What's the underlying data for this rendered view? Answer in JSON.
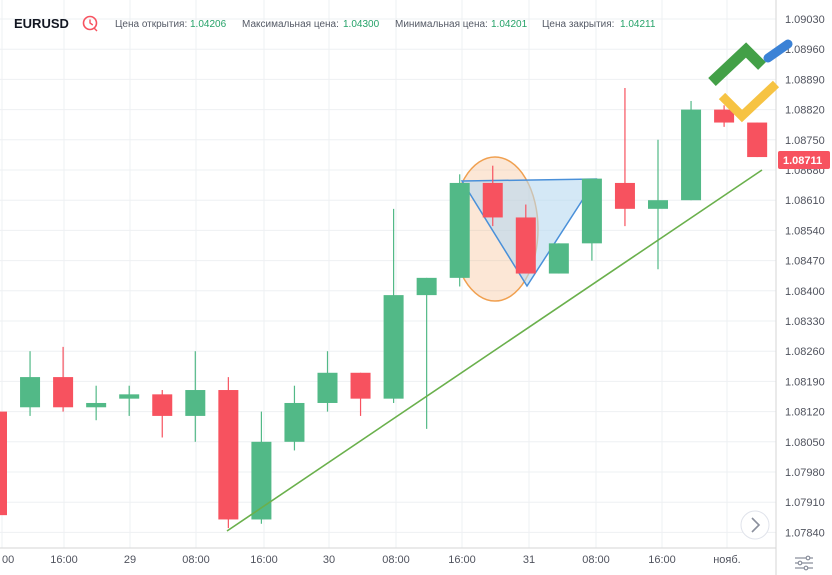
{
  "header": {
    "symbol": "EURUSD",
    "open_label": "Цена открытия:",
    "open_value": "1.04206",
    "high_label": "Максимальная цена:",
    "high_value": "1.04300",
    "low_label": "Минимальная цена:",
    "low_value": "1.04201",
    "close_label": "Цена закрытия:",
    "close_value": "1.04211"
  },
  "colors": {
    "up": "#52b987",
    "down": "#f7525f",
    "trend": "#6ab04c",
    "pattern": "#4a90d9",
    "highlight": "#f5a05a",
    "price_tag": "#f7525f"
  },
  "icons": {
    "clock": "clock-icon",
    "logo": "brand-logo",
    "scroll": "chevron-right-icon",
    "settings": "settings-icon"
  },
  "chart_data": {
    "type": "candlestick",
    "symbol": "EURUSD",
    "y_ticks": [
      "1.09030",
      "1.08960",
      "1.08890",
      "1.08820",
      "1.08750",
      "1.08680",
      "1.08610",
      "1.08540",
      "1.08470",
      "1.08400",
      "1.08330",
      "1.08260",
      "1.08190",
      "1.08120",
      "1.08050",
      "1.07980",
      "1.07910",
      "1.07840"
    ],
    "ylim": [
      1.0782,
      1.0905
    ],
    "x_ticks": [
      "00",
      "16:00",
      "29",
      "08:00",
      "16:00",
      "30",
      "08:00",
      "16:00",
      "31",
      "08:00",
      "16:00",
      "нояб."
    ],
    "last_price": "1.08711",
    "candles": [
      {
        "o": 1.0812,
        "h": 1.0812,
        "l": 1.0788,
        "c": 1.0788
      },
      {
        "o": 1.0813,
        "h": 1.0826,
        "l": 1.0811,
        "c": 1.082
      },
      {
        "o": 1.082,
        "h": 1.0827,
        "l": 1.0812,
        "c": 1.0813
      },
      {
        "o": 1.0813,
        "h": 1.0818,
        "l": 1.081,
        "c": 1.0814
      },
      {
        "o": 1.0815,
        "h": 1.0818,
        "l": 1.0811,
        "c": 1.0816
      },
      {
        "o": 1.0816,
        "h": 1.0817,
        "l": 1.0806,
        "c": 1.0811
      },
      {
        "o": 1.0811,
        "h": 1.0826,
        "l": 1.0805,
        "c": 1.0817
      },
      {
        "o": 1.0817,
        "h": 1.082,
        "l": 1.0785,
        "c": 1.0787
      },
      {
        "o": 1.0787,
        "h": 1.0812,
        "l": 1.0786,
        "c": 1.0805
      },
      {
        "o": 1.0805,
        "h": 1.0818,
        "l": 1.0803,
        "c": 1.0814
      },
      {
        "o": 1.0814,
        "h": 1.0826,
        "l": 1.0812,
        "c": 1.0821
      },
      {
        "o": 1.0821,
        "h": 1.0821,
        "l": 1.0811,
        "c": 1.0815
      },
      {
        "o": 1.0815,
        "h": 1.0859,
        "l": 1.0814,
        "c": 1.0839
      },
      {
        "o": 1.0839,
        "h": 1.0843,
        "l": 1.0808,
        "c": 1.0843
      },
      {
        "o": 1.0843,
        "h": 1.0867,
        "l": 1.0841,
        "c": 1.0865
      },
      {
        "o": 1.0865,
        "h": 1.0869,
        "l": 1.0855,
        "c": 1.0857
      },
      {
        "o": 1.0857,
        "h": 1.086,
        "l": 1.0844,
        "c": 1.0844
      },
      {
        "o": 1.0844,
        "h": 1.0851,
        "l": 1.0844,
        "c": 1.0851
      },
      {
        "o": 1.0851,
        "h": 1.0866,
        "l": 1.0847,
        "c": 1.0866
      },
      {
        "o": 1.0865,
        "h": 1.0887,
        "l": 1.0855,
        "c": 1.0859
      },
      {
        "o": 1.0859,
        "h": 1.0875,
        "l": 1.0845,
        "c": 1.0861
      },
      {
        "o": 1.0861,
        "h": 1.0884,
        "l": 1.0861,
        "c": 1.0882
      },
      {
        "o": 1.0882,
        "h": 1.0883,
        "l": 1.0878,
        "c": 1.0879
      },
      {
        "o": 1.0879,
        "h": 1.0879,
        "l": 1.0871,
        "c": 1.0871
      }
    ]
  }
}
